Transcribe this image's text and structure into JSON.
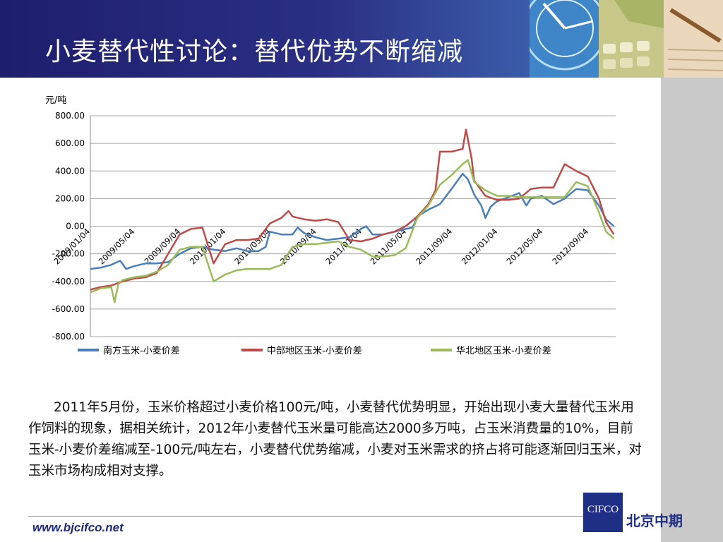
{
  "header": {
    "title": "小麦替代性讨论：替代优势不断缩减"
  },
  "chart_data": {
    "type": "line",
    "ylabel": "元/吨",
    "ylim": [
      -800,
      800
    ],
    "yticks": [
      "800.00",
      "600.00",
      "400.00",
      "200.00",
      "0.00",
      "-200.00",
      "-400.00",
      "-600.00",
      "-800.00"
    ],
    "x_start": "2009/01/04",
    "x_end": "2012/11/15",
    "xticks": [
      "2009/01/04",
      "2009/05/04",
      "2009/09/04",
      "2010/01/04",
      "2010/05/04",
      "2010/09/04",
      "2011/01/04",
      "2011/05/04",
      "2011/09/04",
      "2012/01/04",
      "2012/05/04",
      "2012/09/04"
    ],
    "grid": true,
    "legend_position": "bottom",
    "series": [
      {
        "name": "南方玉米-小麦价差",
        "color": "#4a7ebb",
        "points": [
          [
            "2009/01/04",
            -310
          ],
          [
            "2009/02/01",
            -300
          ],
          [
            "2009/03/01",
            -280
          ],
          [
            "2009/03/25",
            -250
          ],
          [
            "2009/04/10",
            -310
          ],
          [
            "2009/05/01",
            -290
          ],
          [
            "2009/06/01",
            -270
          ],
          [
            "2009/07/01",
            -270
          ],
          [
            "2009/08/01",
            -260
          ],
          [
            "2009/09/01",
            -200
          ],
          [
            "2009/10/01",
            -160
          ],
          [
            "2009/11/01",
            -150
          ],
          [
            "2009/12/01",
            -170
          ],
          [
            "2010/01/01",
            -180
          ],
          [
            "2010/02/01",
            -160
          ],
          [
            "2010/03/01",
            -180
          ],
          [
            "2010/04/01",
            -180
          ],
          [
            "2010/04/20",
            -150
          ],
          [
            "2010/05/01",
            -40
          ],
          [
            "2010/06/01",
            -60
          ],
          [
            "2010/07/01",
            -60
          ],
          [
            "2010/07/15",
            -10
          ],
          [
            "2010/08/01",
            -50
          ],
          [
            "2010/09/01",
            -80
          ],
          [
            "2010/10/01",
            -100
          ],
          [
            "2010/11/01",
            -90
          ],
          [
            "2010/12/01",
            -80
          ],
          [
            "2011/01/01",
            -20
          ],
          [
            "2011/01/15",
            0
          ],
          [
            "2011/02/01",
            -60
          ],
          [
            "2011/03/01",
            -60
          ],
          [
            "2011/04/01",
            -40
          ],
          [
            "2011/05/01",
            -20
          ],
          [
            "2011/05/20",
            -10
          ],
          [
            "2011/06/01",
            70
          ],
          [
            "2011/07/01",
            120
          ],
          [
            "2011/08/01",
            160
          ],
          [
            "2011/09/01",
            270
          ],
          [
            "2011/10/01",
            380
          ],
          [
            "2011/10/15",
            340
          ],
          [
            "2011/11/01",
            230
          ],
          [
            "2011/11/20",
            150
          ],
          [
            "2011/12/01",
            60
          ],
          [
            "2011/12/15",
            140
          ],
          [
            "2012/01/01",
            180
          ],
          [
            "2012/02/01",
            210
          ],
          [
            "2012/03/01",
            240
          ],
          [
            "2012/03/20",
            150
          ],
          [
            "2012/04/01",
            200
          ],
          [
            "2012/05/01",
            220
          ],
          [
            "2012/06/01",
            160
          ],
          [
            "2012/07/01",
            200
          ],
          [
            "2012/08/01",
            270
          ],
          [
            "2012/09/01",
            260
          ],
          [
            "2012/10/01",
            150
          ],
          [
            "2012/10/20",
            50
          ],
          [
            "2012/11/10",
            0
          ]
        ]
      },
      {
        "name": "中部地区玉米-小麦价差",
        "color": "#be4b48",
        "points": [
          [
            "2009/01/04",
            -460
          ],
          [
            "2009/02/01",
            -440
          ],
          [
            "2009/03/01",
            -430
          ],
          [
            "2009/04/01",
            -400
          ],
          [
            "2009/05/01",
            -380
          ],
          [
            "2009/06/01",
            -370
          ],
          [
            "2009/07/01",
            -340
          ],
          [
            "2009/08/01",
            -200
          ],
          [
            "2009/09/01",
            -60
          ],
          [
            "2009/10/01",
            -20
          ],
          [
            "2009/11/01",
            -10
          ],
          [
            "2009/12/01",
            -270
          ],
          [
            "2010/01/01",
            -130
          ],
          [
            "2010/02/01",
            -100
          ],
          [
            "2010/03/01",
            -100
          ],
          [
            "2010/04/01",
            -90
          ],
          [
            "2010/05/01",
            20
          ],
          [
            "2010/06/01",
            60
          ],
          [
            "2010/06/20",
            110
          ],
          [
            "2010/07/01",
            70
          ],
          [
            "2010/08/01",
            50
          ],
          [
            "2010/09/01",
            40
          ],
          [
            "2010/10/01",
            50
          ],
          [
            "2010/11/01",
            30
          ],
          [
            "2010/12/01",
            -100
          ],
          [
            "2011/01/01",
            -110
          ],
          [
            "2011/02/01",
            -90
          ],
          [
            "2011/03/01",
            -60
          ],
          [
            "2011/04/01",
            -40
          ],
          [
            "2011/05/01",
            0
          ],
          [
            "2011/06/01",
            70
          ],
          [
            "2011/07/01",
            160
          ],
          [
            "2011/07/20",
            260
          ],
          [
            "2011/08/01",
            540
          ],
          [
            "2011/09/01",
            540
          ],
          [
            "2011/10/01",
            560
          ],
          [
            "2011/10/10",
            700
          ],
          [
            "2011/10/25",
            490
          ],
          [
            "2011/11/01",
            330
          ],
          [
            "2011/12/01",
            220
          ],
          [
            "2012/01/01",
            190
          ],
          [
            "2012/02/01",
            190
          ],
          [
            "2012/03/01",
            200
          ],
          [
            "2012/04/01",
            270
          ],
          [
            "2012/05/01",
            280
          ],
          [
            "2012/06/01",
            280
          ],
          [
            "2012/07/01",
            450
          ],
          [
            "2012/08/01",
            400
          ],
          [
            "2012/09/01",
            360
          ],
          [
            "2012/10/01",
            200
          ],
          [
            "2012/10/20",
            30
          ],
          [
            "2012/11/10",
            -60
          ]
        ]
      },
      {
        "name": "华北地区玉米-小麦价差",
        "color": "#9bbb59",
        "points": [
          [
            "2009/01/04",
            -480
          ],
          [
            "2009/02/01",
            -450
          ],
          [
            "2009/03/01",
            -440
          ],
          [
            "2009/03/10",
            -550
          ],
          [
            "2009/03/20",
            -420
          ],
          [
            "2009/04/01",
            -390
          ],
          [
            "2009/05/01",
            -370
          ],
          [
            "2009/06/01",
            -360
          ],
          [
            "2009/07/01",
            -330
          ],
          [
            "2009/08/01",
            -280
          ],
          [
            "2009/09/01",
            -170
          ],
          [
            "2009/10/01",
            -150
          ],
          [
            "2009/11/01",
            -150
          ],
          [
            "2009/12/01",
            -400
          ],
          [
            "2010/01/01",
            -350
          ],
          [
            "2010/02/01",
            -320
          ],
          [
            "2010/03/01",
            -310
          ],
          [
            "2010/04/01",
            -310
          ],
          [
            "2010/05/01",
            -310
          ],
          [
            "2010/06/01",
            -280
          ],
          [
            "2010/07/01",
            -150
          ],
          [
            "2010/08/01",
            -130
          ],
          [
            "2010/09/01",
            -130
          ],
          [
            "2010/10/01",
            -120
          ],
          [
            "2010/11/01",
            -110
          ],
          [
            "2010/12/01",
            -150
          ],
          [
            "2011/01/01",
            -170
          ],
          [
            "2011/02/01",
            -220
          ],
          [
            "2011/03/01",
            -220
          ],
          [
            "2011/04/01",
            -210
          ],
          [
            "2011/05/01",
            -160
          ],
          [
            "2011/06/01",
            60
          ],
          [
            "2011/07/01",
            150
          ],
          [
            "2011/08/01",
            300
          ],
          [
            "2011/09/01",
            370
          ],
          [
            "2011/10/01",
            450
          ],
          [
            "2011/10/15",
            480
          ],
          [
            "2011/11/01",
            320
          ],
          [
            "2011/12/01",
            260
          ],
          [
            "2012/01/01",
            220
          ],
          [
            "2012/02/01",
            220
          ],
          [
            "2012/03/01",
            210
          ],
          [
            "2012/04/01",
            210
          ],
          [
            "2012/05/01",
            210
          ],
          [
            "2012/06/01",
            210
          ],
          [
            "2012/07/01",
            210
          ],
          [
            "2012/08/01",
            320
          ],
          [
            "2012/09/01",
            290
          ],
          [
            "2012/10/01",
            100
          ],
          [
            "2012/10/20",
            -40
          ],
          [
            "2012/11/10",
            -90
          ]
        ]
      }
    ]
  },
  "body": {
    "paragraph": "2011年5月份，玉米价格超过小麦价格100元/吨，小麦替代优势明显，开始出现小麦大量替代玉米用作饲料的现象，据相关统计，2012年小麦替代玉米量可能高达2000多万吨，占玉米消费量的10%，目前玉米-小麦价差缩减至-100元/吨左右，小麦替代优势缩减，小麦对玉米需求的挤占将可能逐渐回归玉米，对玉米市场构成相对支撑。"
  },
  "footer": {
    "website": "www.bjcifco.net",
    "logo_text": "CIFCO",
    "company": "北京中期"
  },
  "colors": {
    "header_dark": "#1e1e6e",
    "brand_blue": "#1f2f86",
    "right_strip": "#c9c9c9"
  }
}
